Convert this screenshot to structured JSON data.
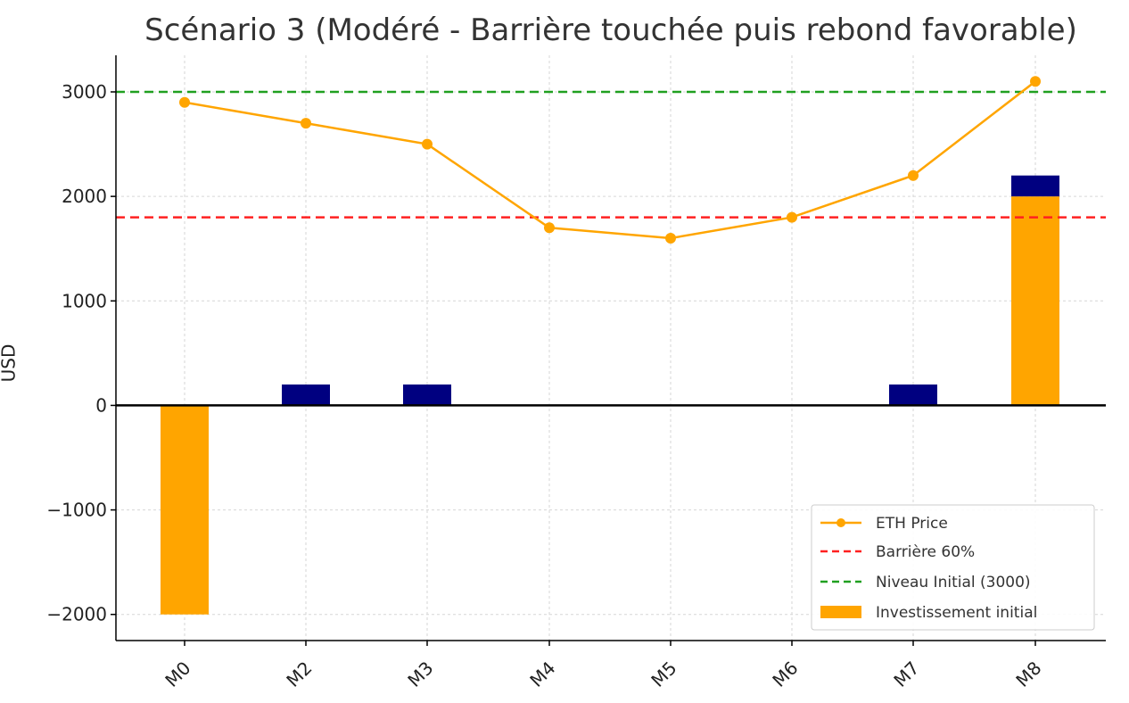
{
  "chart_data": {
    "type": "bar",
    "title": "Scénario 3 (Modéré - Barrière touchée puis rebond favorable)",
    "ylabel": "USD",
    "xlabel": "",
    "ylim": [
      -2250,
      3350
    ],
    "yticks": [
      -2000,
      -1000,
      0,
      1000,
      2000,
      3000
    ],
    "ytick_labels": [
      "−2000",
      "−1000",
      "0",
      "1000",
      "2000",
      "3000"
    ],
    "categories": [
      "M0",
      "M2",
      "M3",
      "M4",
      "M5",
      "M6",
      "M7",
      "M8"
    ],
    "grid": true,
    "legend_position": "lower right",
    "series": [
      {
        "name": "ETH Price",
        "kind": "line",
        "color": "#FFA500",
        "values": [
          2900,
          2700,
          2500,
          1700,
          1600,
          1800,
          2200,
          3100
        ]
      },
      {
        "name": "Investissement initial",
        "kind": "bar",
        "color": "#FFA500",
        "values": [
          -2000,
          0,
          0,
          0,
          0,
          0,
          0,
          2000
        ]
      },
      {
        "kind": "bar",
        "color": "#000080",
        "stacked_on": "Investissement initial",
        "values": [
          0,
          200,
          200,
          0,
          0,
          0,
          200,
          200
        ]
      }
    ],
    "reference_lines": [
      {
        "name": "Barrière 60%",
        "y": 1800,
        "color": "#FF2020",
        "style": "dashed"
      },
      {
        "name": "Niveau Initial (3000)",
        "y": 3000,
        "color": "#20A020",
        "style": "dashed"
      }
    ],
    "legend": [
      "ETH Price",
      "Barrière 60%",
      "Niveau Initial (3000)",
      "Investissement initial"
    ]
  }
}
